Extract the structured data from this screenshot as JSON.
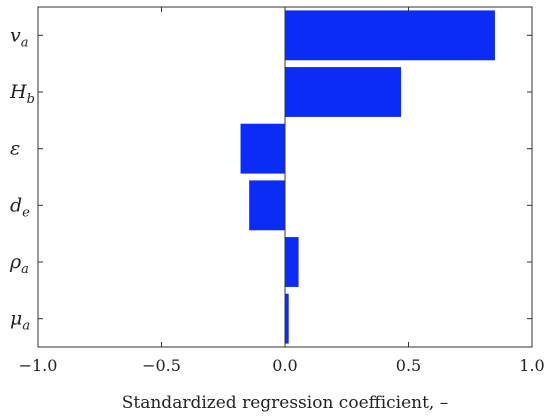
{
  "chart_data": {
    "type": "bar",
    "orientation": "horizontal",
    "categories": [
      {
        "base": "v",
        "sub": "a"
      },
      {
        "base": "H",
        "sub": "b"
      },
      {
        "base": "ε",
        "sub": ""
      },
      {
        "base": "d",
        "sub": "e"
      },
      {
        "base": "ρ",
        "sub": "a"
      },
      {
        "base": "μ",
        "sub": "a"
      }
    ],
    "values": [
      0.85,
      0.47,
      -0.18,
      -0.145,
      0.055,
      0.015
    ],
    "xlabel": "Standardized regression coefficient, –",
    "xlim": [
      -1.0,
      1.0
    ],
    "xticks": [
      -1.0,
      -0.5,
      0.0,
      0.5,
      1.0
    ],
    "xtick_labels": [
      "−1.0",
      "−0.5",
      "0.0",
      "0.5",
      "1.0"
    ],
    "grid": false,
    "bar_color": "#0a2cf5",
    "zero_line_color": "#333333"
  }
}
